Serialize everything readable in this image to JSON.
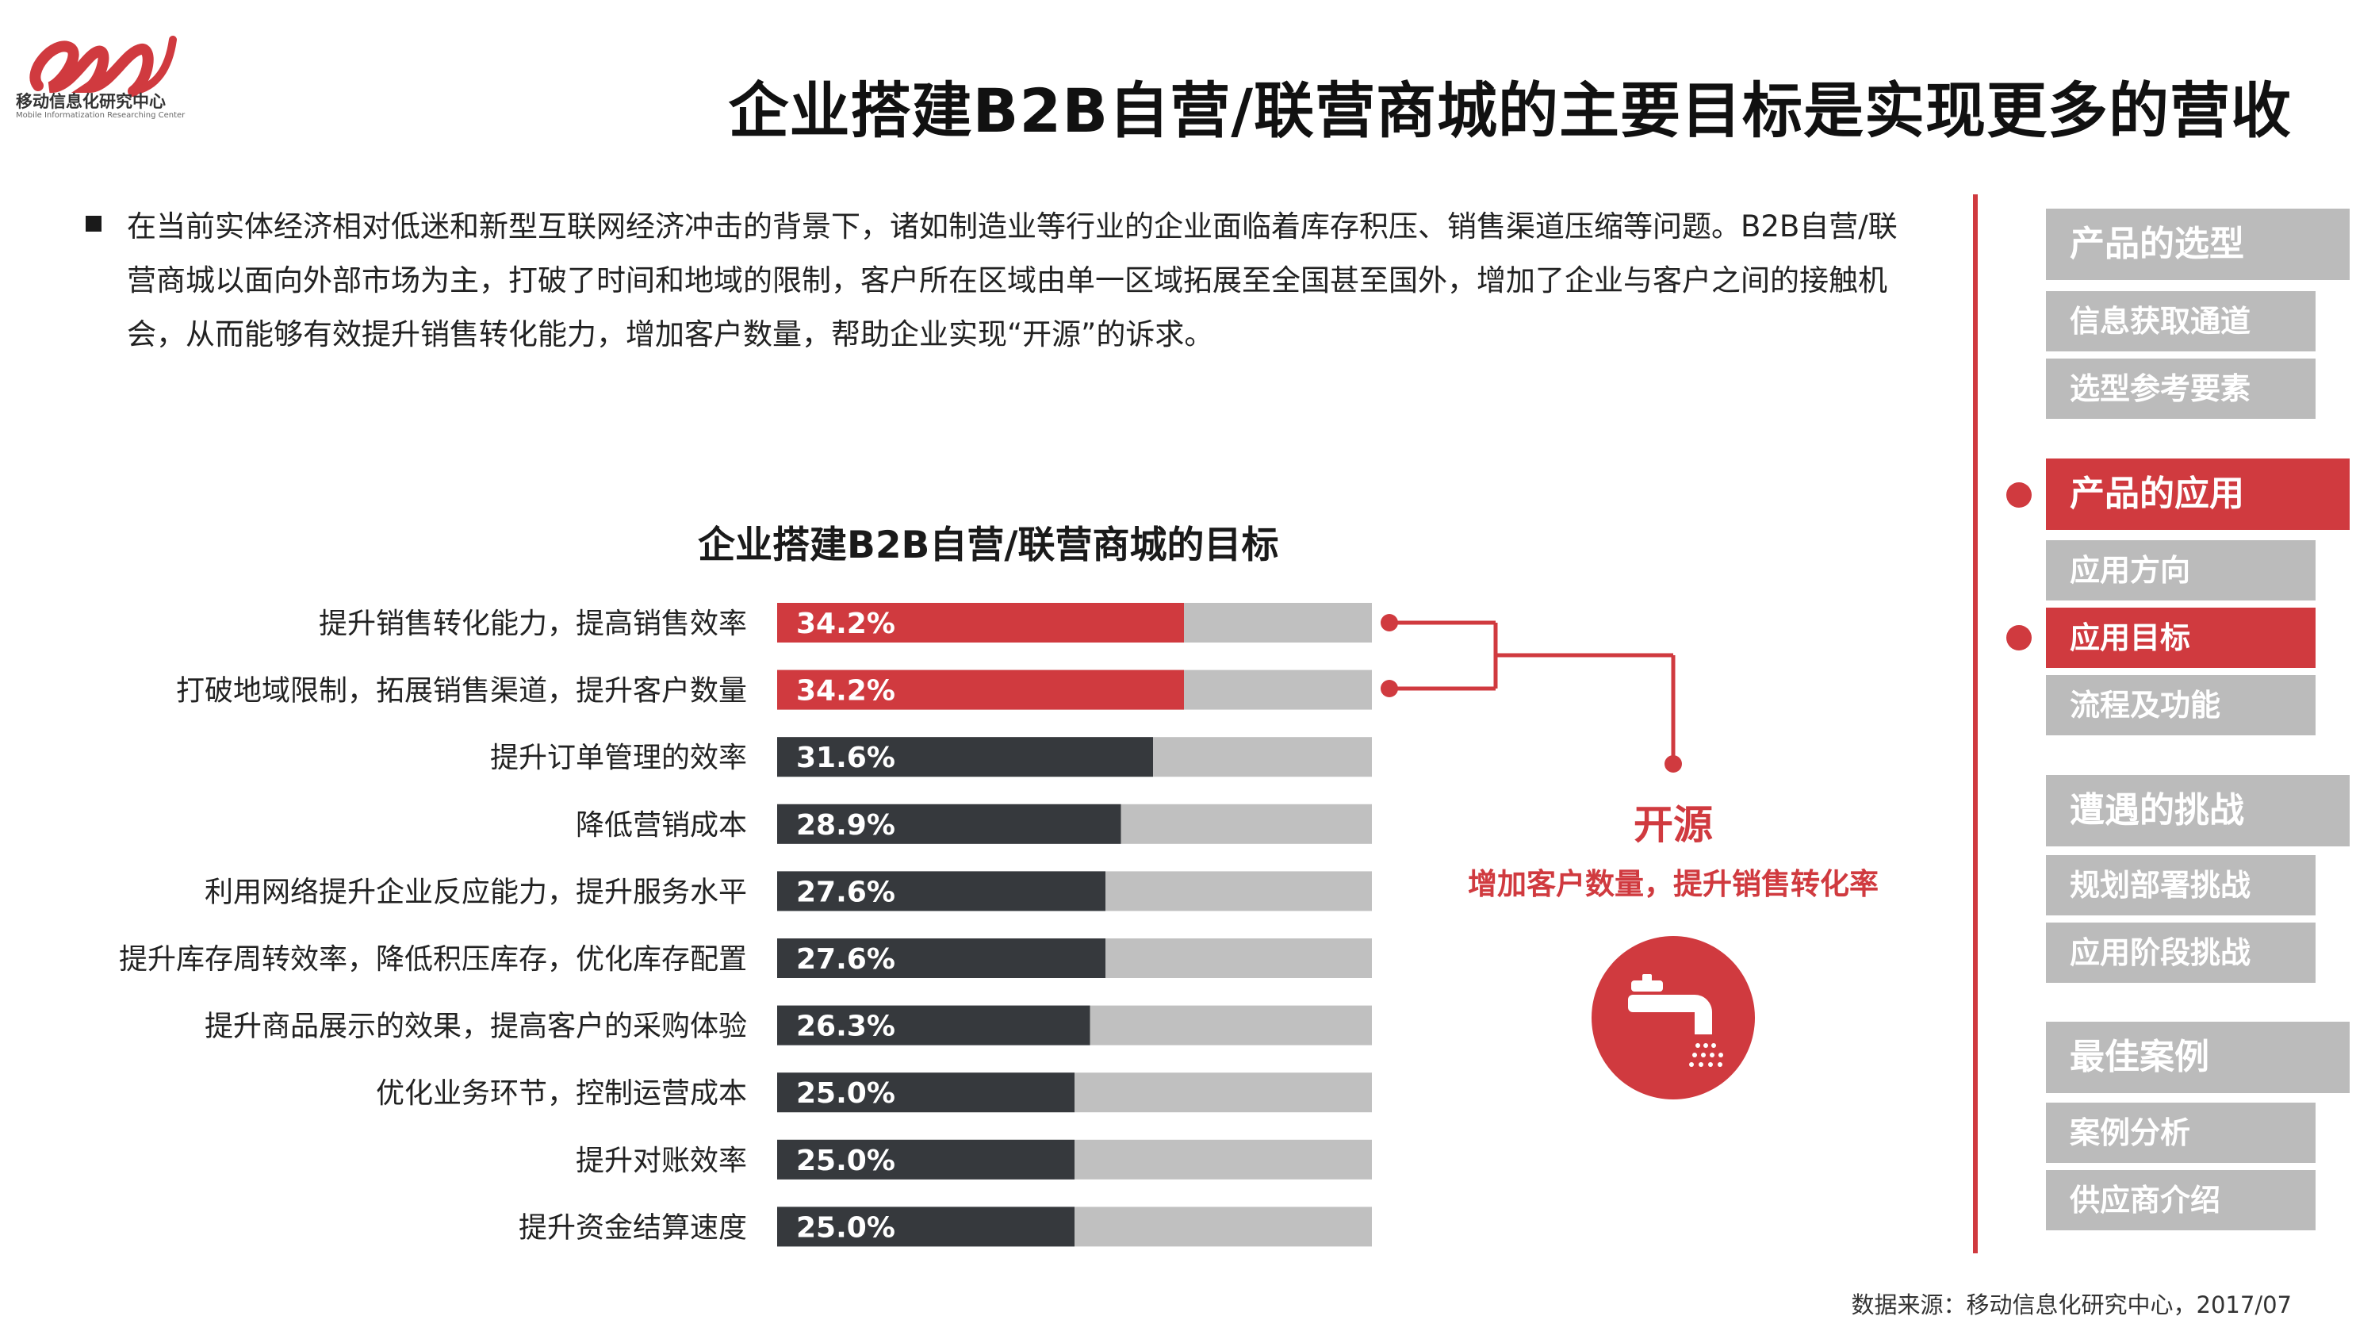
{
  "brand": {
    "name_cn": "移动信息化研究中心",
    "name_en": "Mobile Informatization Researching Center"
  },
  "page_title": "企业搭建B2B自营/联营商城的主要目标是实现更多的营收",
  "intro": "在当前实体经济相对低迷和新型互联网经济冲击的背景下，诸如制造业等行业的企业面临着库存积压、销售渠道压缩等问题。B2B自营/联营商城以面向外部市场为主，打破了时间和地域的限制，客户所在区域由单一区域拓展至全国甚至国外，增加了企业与客户之间的接触机会，从而能够有效提升销售转化能力，增加客户数量，帮助企业实现“开源”的诉求。",
  "chart_data": {
    "type": "bar",
    "orientation": "horizontal",
    "title": "企业搭建B2B自营/联营商城的目标",
    "xlim": [
      0,
      50
    ],
    "categories": [
      "提升销售转化能力，提高销售效率",
      "打破地域限制，拓展销售渠道，提升客户数量",
      "提升订单管理的效率",
      "降低营销成本",
      "利用网络提升企业反应能力，提升服务水平",
      "提升库存周转效率，降低积压库存，优化库存配置",
      "提升商品展示的效果，提高客户的采购体验",
      "优化业务环节，控制运营成本",
      "提升对账效率",
      "提升资金结算速度"
    ],
    "values": [
      34.2,
      34.2,
      31.6,
      28.9,
      27.6,
      27.6,
      26.3,
      25.0,
      25.0,
      25.0
    ],
    "value_labels": [
      "34.2%",
      "34.2%",
      "31.6%",
      "28.9%",
      "27.6%",
      "27.6%",
      "26.3%",
      "25.0%",
      "25.0%",
      "25.0%"
    ],
    "highlighted": [
      true,
      true,
      false,
      false,
      false,
      false,
      false,
      false,
      false,
      false
    ],
    "colors": {
      "highlight": "#d03a3f",
      "normal": "#36393d",
      "track": "#c0c0c0"
    }
  },
  "callout": {
    "title": "开源",
    "subtitle": "增加客户数量，提升销售转化率",
    "icon": "faucet-icon"
  },
  "nav": {
    "sections": [
      {
        "label": "产品的选型",
        "active": false,
        "items": [
          {
            "label": "信息获取通道",
            "active": false
          },
          {
            "label": "选型参考要素",
            "active": false
          }
        ]
      },
      {
        "label": "产品的应用",
        "active": true,
        "items": [
          {
            "label": "应用方向",
            "active": false
          },
          {
            "label": "应用目标",
            "active": true
          },
          {
            "label": "流程及功能",
            "active": false
          }
        ]
      },
      {
        "label": "遭遇的挑战",
        "active": false,
        "items": [
          {
            "label": "规划部署挑战",
            "active": false
          },
          {
            "label": "应用阶段挑战",
            "active": false
          }
        ]
      },
      {
        "label": "最佳案例",
        "active": false,
        "items": [
          {
            "label": "案例分析",
            "active": false
          },
          {
            "label": "供应商介绍",
            "active": false
          }
        ]
      }
    ]
  },
  "source": "数据来源：移动信息化研究中心，2017/07",
  "colors": {
    "accent": "#d03a3f",
    "nav_gray": "#bbbbbb",
    "dark_bar": "#36393d"
  }
}
